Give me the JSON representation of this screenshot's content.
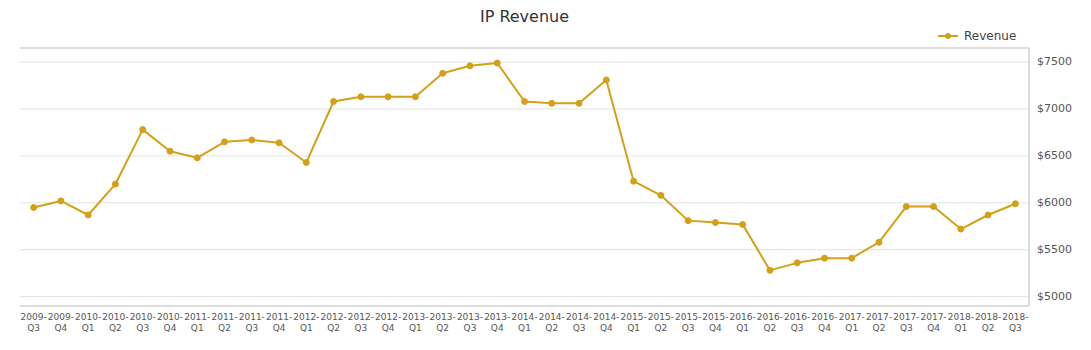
{
  "chart_data": {
    "type": "line",
    "title": "IP Revenue",
    "categories": [
      "2009-\nQ3",
      "2009-\nQ4",
      "2010-\nQ1",
      "2010-\nQ2",
      "2010-\nQ3",
      "2010-\nQ4",
      "2011-\nQ1",
      "2011-\nQ2",
      "2011-\nQ3",
      "2011-\nQ4",
      "2012-\nQ1",
      "2012-\nQ2",
      "2012-\nQ3",
      "2012-\nQ4",
      "2013-\nQ1",
      "2013-\nQ2",
      "2013-\nQ3",
      "2013-\nQ4",
      "2014-\nQ1",
      "2014-\nQ2",
      "2014-\nQ3",
      "2014-\nQ4",
      "2015-\nQ1",
      "2015-\nQ2",
      "2015-\nQ3",
      "2015-\nQ4",
      "2016-\nQ1",
      "2016-\nQ2",
      "2016-\nQ3",
      "2016-\nQ4",
      "2017-\nQ1",
      "2017-\nQ2",
      "2017-\nQ3",
      "2017-\nQ4",
      "2018-\nQ1",
      "2018-\nQ2",
      "2018-\nQ3"
    ],
    "series": [
      {
        "name": "Revenue",
        "color": "#D4A017",
        "marker": "circle",
        "line_style": "solid",
        "values": [
          5950,
          6020,
          5870,
          6200,
          6780,
          6550,
          6480,
          6650,
          6670,
          6640,
          6430,
          7080,
          7130,
          7130,
          7130,
          7380,
          7460,
          7490,
          7080,
          7060,
          7060,
          7310,
          6230,
          6080,
          5810,
          5790,
          5770,
          5280,
          5360,
          5410,
          5410,
          5580,
          5960,
          5960,
          5720,
          5870,
          5990
        ]
      }
    ],
    "ylim": [
      4900,
      7650
    ],
    "yticks": [
      {
        "value": 5000,
        "label": "$5000"
      },
      {
        "value": 5500,
        "label": "$5500"
      },
      {
        "value": 6000,
        "label": "$6000"
      },
      {
        "value": 6500,
        "label": "$6500"
      },
      {
        "value": 7000,
        "label": "$7000"
      },
      {
        "value": 7500,
        "label": "$7500"
      }
    ],
    "grid": true,
    "legend": "upper right"
  }
}
